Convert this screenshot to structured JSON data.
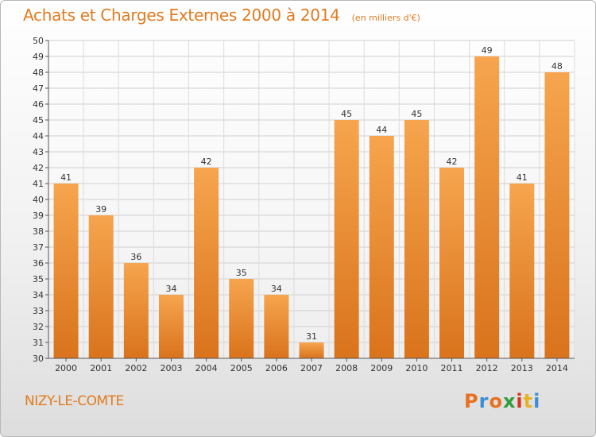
{
  "header": {
    "title": "Achats et Charges Externes 2000 à 2014",
    "subtitle": "(en milliers d'€)"
  },
  "footer": {
    "place": "NIZY-LE-COMTE",
    "logo": "Proxiti"
  },
  "colors": {
    "bar_light": "#f6a54e",
    "bar_dark": "#d9731c",
    "title": "#e07b1f",
    "logo_letters": [
      "#e8701f",
      "#3b8ed6",
      "#e8701f",
      "#2f9e3a",
      "#d4341f",
      "#e8b21f",
      "#3b8ed6"
    ]
  },
  "chart_data": {
    "type": "bar",
    "title": "Achats et Charges Externes 2000 à 2014",
    "subtitle": "(en milliers d'€)",
    "xlabel": "",
    "ylabel": "",
    "categories": [
      "2000",
      "2001",
      "2002",
      "2003",
      "2004",
      "2005",
      "2006",
      "2007",
      "2008",
      "2009",
      "2010",
      "2011",
      "2012",
      "2013",
      "2014"
    ],
    "values": [
      41,
      39,
      36,
      34,
      42,
      35,
      34,
      31,
      45,
      44,
      45,
      42,
      49,
      41,
      48
    ],
    "ylim": [
      30,
      50
    ],
    "yticks": [
      30,
      31,
      32,
      33,
      34,
      35,
      36,
      37,
      38,
      39,
      40,
      41,
      42,
      43,
      44,
      45,
      46,
      47,
      48,
      49,
      50
    ],
    "grid": true,
    "data_labels": true
  }
}
